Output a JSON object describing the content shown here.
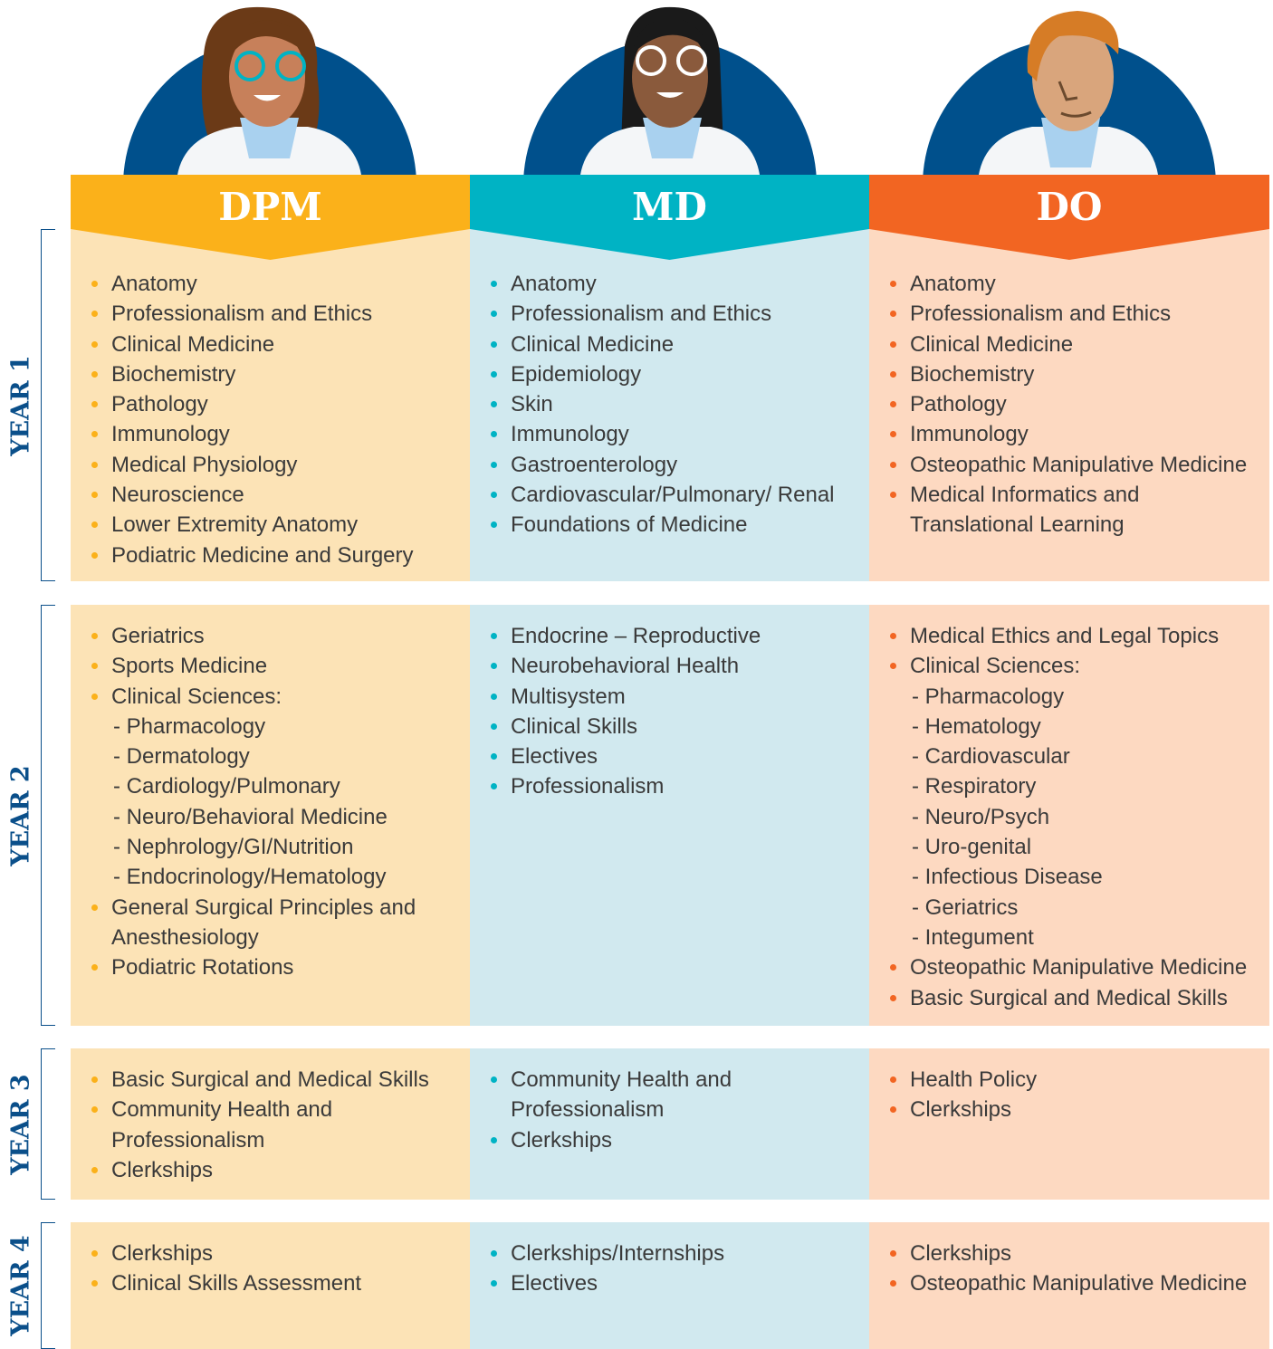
{
  "columns": [
    {
      "label": "DPM",
      "color": "#fbb11a",
      "bg": "#fce3b6"
    },
    {
      "label": "MD",
      "color": "#00b3c4",
      "bg": "#d1e9ef"
    },
    {
      "label": "DO",
      "color": "#f26522",
      "bg": "#fdd9c1"
    }
  ],
  "years": [
    {
      "label": "YEAR 1",
      "cells": [
        [
          "Anatomy",
          "Professionalism and Ethics",
          "Clinical Medicine",
          "Biochemistry",
          "Pathology",
          "Immunology",
          "Medical Physiology",
          "Neuroscience",
          "Lower Extremity Anatomy",
          "Podiatric Medicine and Surgery"
        ],
        [
          "Anatomy",
          "Professionalism and Ethics",
          "Clinical Medicine",
          "Epidemiology",
          "Skin",
          "Immunology",
          "Gastroenterology",
          "Cardiovascular/Pulmonary/ Renal",
          "Foundations of Medicine"
        ],
        [
          "Anatomy",
          "Professionalism and Ethics",
          "Clinical Medicine",
          "Biochemistry",
          "Pathology",
          "Immunology",
          "Osteopathic Manipulative Medicine",
          "Medical Informatics and Translational Learning"
        ]
      ]
    },
    {
      "label": "YEAR 2",
      "cells": [
        [
          "Geriatrics",
          "Sports Medicine",
          {
            "text": "Clinical Sciences:",
            "sub": [
              "- Pharmacology",
              "- Dermatology",
              "- Cardiology/Pulmonary",
              "- Neuro/Behavioral Medicine",
              "- Nephrology/GI/Nutrition",
              "- Endocrinology/Hematology"
            ]
          },
          "General Surgical Principles and Anesthesiology",
          "Podiatric Rotations"
        ],
        [
          "Endocrine – Reproductive",
          "Neurobehavioral Health",
          "Multisystem",
          "Clinical Skills",
          "Electives",
          "Professionalism"
        ],
        [
          "Medical Ethics and Legal Topics",
          {
            "text": "Clinical Sciences:",
            "sub": [
              "- Pharmacology",
              "- Hematology",
              "- Cardiovascular",
              "- Respiratory",
              "- Neuro/Psych",
              "- Uro-genital",
              "- Infectious Disease",
              "- Geriatrics",
              "- Integument"
            ]
          },
          "Osteopathic Manipulative Medicine",
          "Basic Surgical and Medical Skills"
        ]
      ]
    },
    {
      "label": "YEAR 3",
      "cells": [
        [
          "Basic Surgical and Medical Skills",
          "Community Health and Professionalism",
          "Clerkships"
        ],
        [
          "Community Health and Professionalism",
          "Clerkships"
        ],
        [
          "Health Policy",
          "Clerkships"
        ]
      ]
    },
    {
      "label": "YEAR 4",
      "cells": [
        [
          "Clerkships",
          "Clinical Skills Assessment"
        ],
        [
          "Clerkships/Internships",
          "Electives"
        ],
        [
          "Clerkships",
          "Osteopathic Manipulative Medicine"
        ]
      ]
    }
  ]
}
